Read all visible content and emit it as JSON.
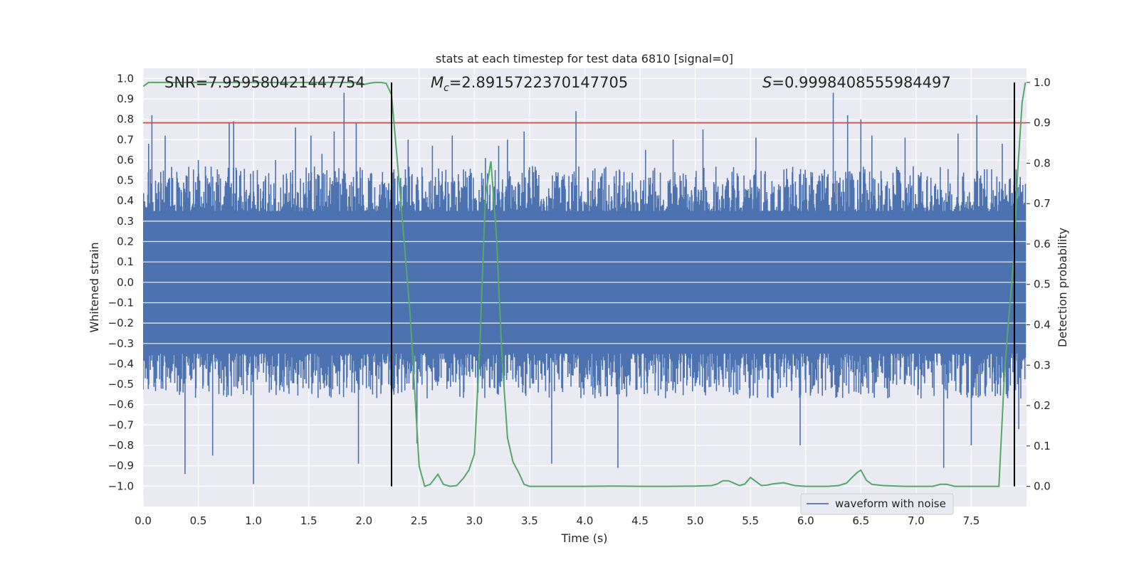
{
  "chart_data": {
    "type": "line",
    "title": "stats at each timestep for test data 6810 [signal=0]",
    "xlabel": "Time (s)",
    "ylabel": "Whitened strain",
    "y2label": "Detection probability",
    "xlim": [
      0.0,
      8.0
    ],
    "ylim": [
      -1.1,
      1.05
    ],
    "y2lim": [
      -0.05,
      1.035
    ],
    "xticks": [
      0.0,
      0.5,
      1.0,
      1.5,
      2.0,
      2.5,
      3.0,
      3.5,
      4.0,
      4.5,
      5.0,
      5.5,
      6.0,
      6.5,
      7.0,
      7.5
    ],
    "xtick_labels": [
      "0.0",
      "0.5",
      "1.0",
      "1.5",
      "2.0",
      "2.5",
      "3.0",
      "3.5",
      "4.0",
      "4.5",
      "5.0",
      "5.5",
      "6.0",
      "6.5",
      "7.0",
      "7.5"
    ],
    "yticks": [
      1.0,
      0.9,
      0.8,
      0.7,
      0.6,
      0.5,
      0.4,
      0.3,
      0.2,
      0.1,
      0.0,
      -0.1,
      -0.2,
      -0.3,
      -0.4,
      -0.5,
      -0.6,
      -0.7,
      -0.8,
      -0.9,
      -1.0
    ],
    "ytick_labels": [
      "1.0",
      "0.9",
      "0.8",
      "0.7",
      "0.6",
      "0.5",
      "0.4",
      "0.3",
      "0.2",
      "0.1",
      "0.0",
      "−0.1",
      "−0.2",
      "−0.3",
      "−0.4",
      "−0.5",
      "−0.6",
      "−0.7",
      "−0.8",
      "−0.9",
      "−1.0"
    ],
    "y2ticks": [
      1.0,
      0.9,
      0.8,
      0.7,
      0.6,
      0.5,
      0.4,
      0.3,
      0.2,
      0.1,
      0.0
    ],
    "y2tick_labels": [
      "1.0",
      "0.9",
      "0.8",
      "0.7",
      "0.6",
      "0.5",
      "0.4",
      "0.3",
      "0.2",
      "0.1",
      "0.0"
    ],
    "grid": true,
    "threshold_line": {
      "axis": "y2",
      "value": 0.9,
      "color": "#c44e52"
    },
    "vertical_lines": [
      2.25,
      7.89
    ],
    "annotations": {
      "snr": "SNR=7.959580421447754",
      "mc_symbol": "M",
      "mc_sub": "c",
      "mc_value": "=2.8915722370147705",
      "s_symbol": "S",
      "s_value": "=0.9998408555984497"
    },
    "series": [
      {
        "name": "waveform with noise",
        "axis": "y",
        "color": "#4c72b0",
        "kind": "noise",
        "x_range": [
          0.0,
          7.99
        ],
        "noise_core_amplitude": 0.35,
        "spikes": [
          [
            0.05,
            0.68
          ],
          [
            0.08,
            0.82
          ],
          [
            0.2,
            0.72
          ],
          [
            0.38,
            -0.94
          ],
          [
            0.5,
            0.6
          ],
          [
            0.63,
            -0.85
          ],
          [
            0.78,
            0.78
          ],
          [
            0.82,
            0.79
          ],
          [
            1.0,
            -0.99
          ],
          [
            1.2,
            0.6
          ],
          [
            1.38,
            0.76
          ],
          [
            1.52,
            0.72
          ],
          [
            1.62,
            0.63
          ],
          [
            1.73,
            0.74
          ],
          [
            1.82,
            0.93
          ],
          [
            1.93,
            0.78
          ],
          [
            1.95,
            -0.89
          ],
          [
            2.4,
            0.7
          ],
          [
            2.48,
            -0.79
          ],
          [
            2.62,
            0.67
          ],
          [
            2.8,
            0.72
          ],
          [
            3.1,
            0.61
          ],
          [
            3.22,
            0.67
          ],
          [
            3.3,
            0.7
          ],
          [
            3.45,
            0.74
          ],
          [
            3.7,
            -0.89
          ],
          [
            3.92,
            0.84
          ],
          [
            4.3,
            -0.91
          ],
          [
            4.55,
            0.65
          ],
          [
            4.8,
            0.7
          ],
          [
            5.07,
            0.75
          ],
          [
            5.55,
            0.71
          ],
          [
            5.95,
            -0.8
          ],
          [
            6.25,
            0.93
          ],
          [
            6.38,
            0.82
          ],
          [
            6.5,
            0.8
          ],
          [
            6.6,
            0.72
          ],
          [
            6.9,
            0.71
          ],
          [
            7.25,
            -0.91
          ],
          [
            7.38,
            0.73
          ],
          [
            7.5,
            -0.8
          ],
          [
            7.55,
            0.82
          ],
          [
            7.78,
            0.68
          ],
          [
            7.93,
            -0.72
          ]
        ]
      },
      {
        "name": "detection probability",
        "axis": "y2",
        "color": "#55a868",
        "x": [
          0.0,
          0.05,
          0.5,
          1.0,
          1.5,
          1.95,
          2.0,
          2.05,
          2.1,
          2.15,
          2.2,
          2.25,
          2.33,
          2.42,
          2.5,
          2.55,
          2.6,
          2.67,
          2.72,
          2.78,
          2.84,
          2.9,
          2.95,
          3.0,
          3.05,
          3.1,
          3.15,
          3.2,
          3.25,
          3.3,
          3.35,
          3.4,
          3.45,
          3.5,
          3.6,
          3.75,
          4.0,
          4.25,
          4.5,
          4.75,
          5.0,
          5.15,
          5.2,
          5.25,
          5.3,
          5.35,
          5.4,
          5.45,
          5.5,
          5.55,
          5.6,
          5.65,
          5.7,
          5.8,
          5.9,
          6.0,
          6.2,
          6.3,
          6.37,
          6.42,
          6.47,
          6.5,
          6.55,
          6.6,
          6.7,
          6.9,
          7.15,
          7.22,
          7.28,
          7.35,
          7.45,
          7.6,
          7.75,
          7.8,
          7.84,
          7.88,
          7.92,
          7.96,
          7.99
        ],
        "y": [
          0.99,
          1.0,
          1.0,
          1.0,
          1.0,
          1.0,
          0.995,
          0.998,
          1.0,
          1.0,
          0.998,
          0.97,
          0.72,
          0.42,
          0.05,
          0.0,
          0.005,
          0.03,
          0.005,
          0.0,
          0.002,
          0.02,
          0.04,
          0.08,
          0.35,
          0.72,
          0.805,
          0.62,
          0.32,
          0.12,
          0.06,
          0.035,
          0.005,
          0.0,
          0.0,
          0.0,
          0.0,
          0.0005,
          0.0,
          0.0,
          0.0005,
          0.002,
          0.006,
          0.014,
          0.014,
          0.008,
          0.002,
          0.006,
          0.022,
          0.012,
          0.002,
          0.003,
          0.006,
          0.009,
          0.002,
          0.0,
          0.0,
          0.002,
          0.008,
          0.022,
          0.035,
          0.04,
          0.015,
          0.005,
          0.002,
          0.0,
          0.0,
          0.005,
          0.005,
          0.0,
          0.0,
          0.0,
          0.0,
          0.28,
          0.42,
          0.55,
          0.78,
          0.95,
          1.0
        ]
      }
    ],
    "legend": {
      "position": "bottom-right",
      "entries": [
        "waveform with noise"
      ]
    }
  }
}
